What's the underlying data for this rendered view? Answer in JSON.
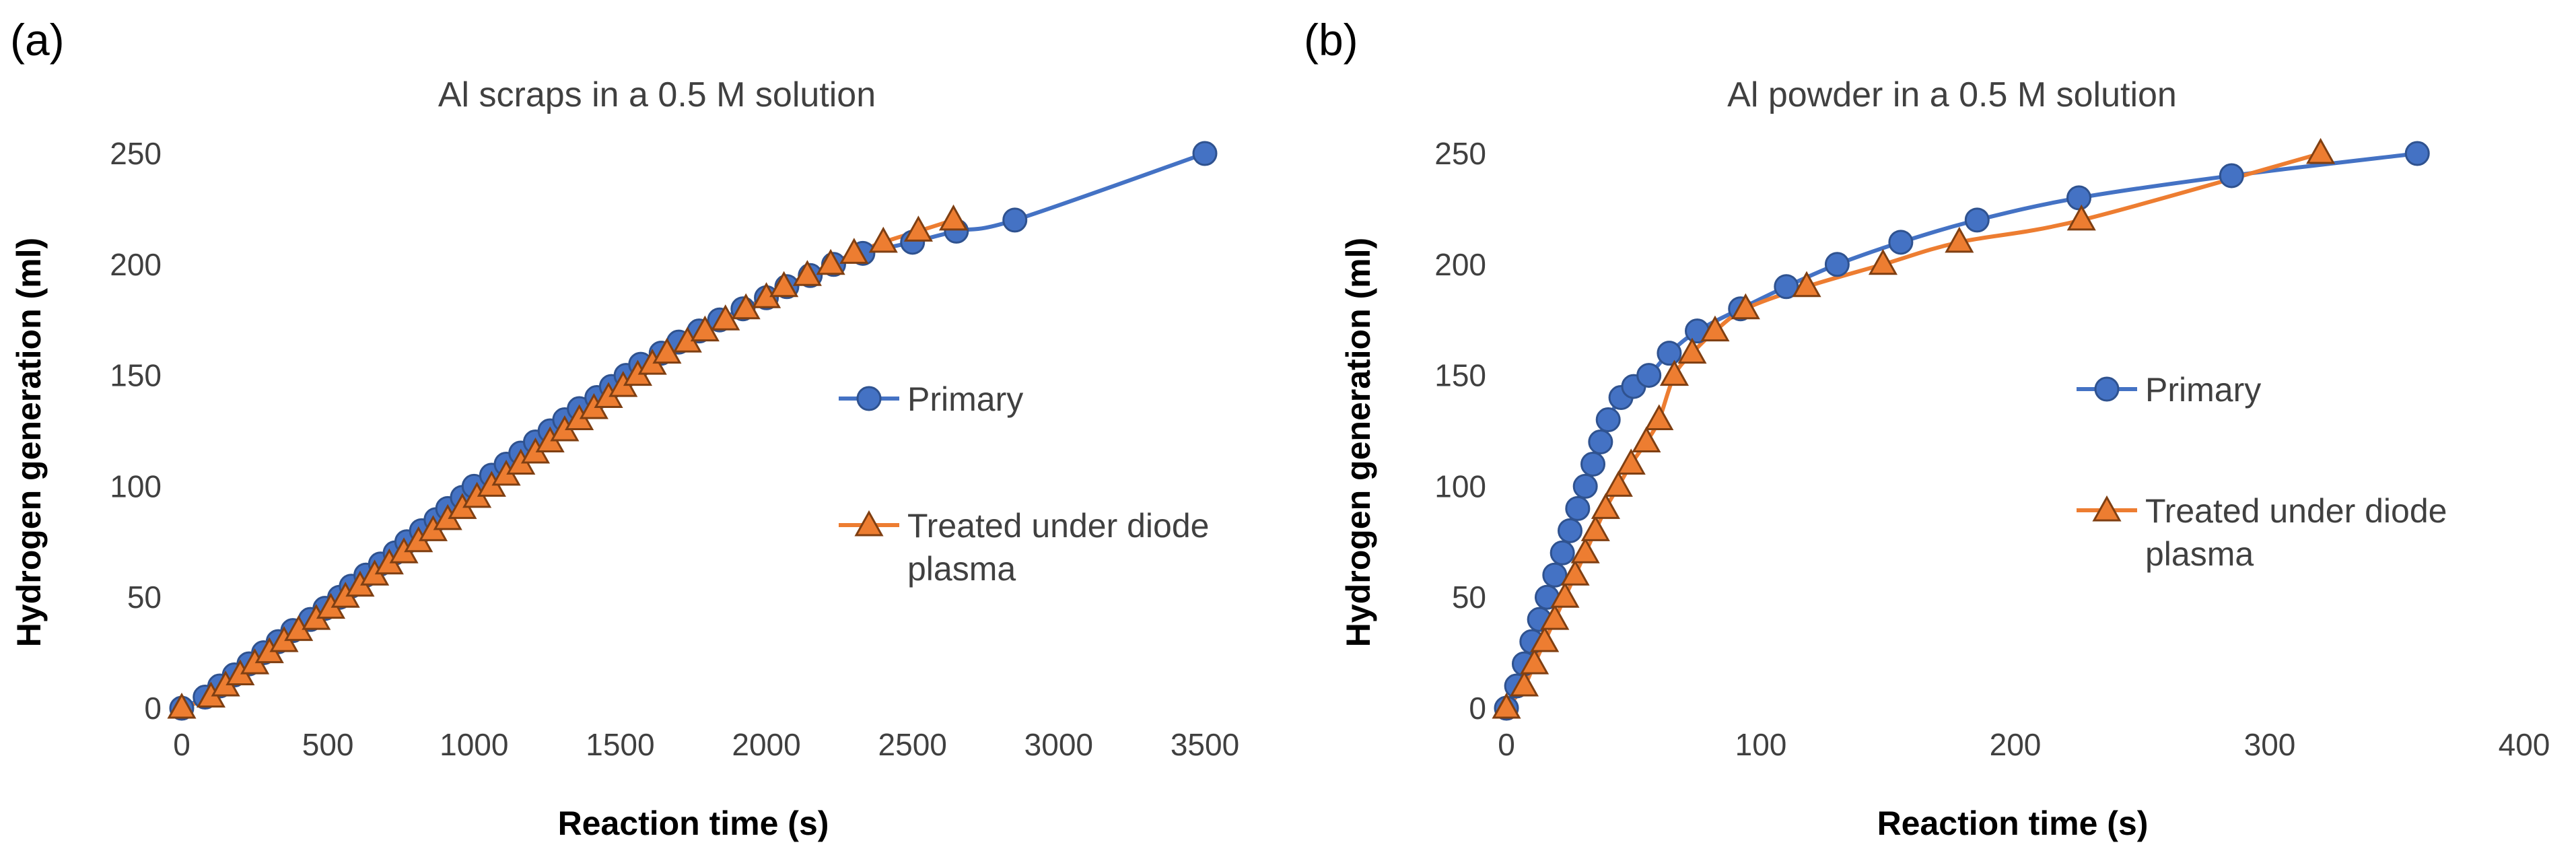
{
  "chart_data": [
    {
      "panel_label": "(a)",
      "type": "scatter",
      "title": "Al scraps in a 0.5 M solution",
      "xlabel": "Reaction time (s)",
      "ylabel": "Hydrogen generation (ml)",
      "xlim": [
        0,
        3500
      ],
      "ylim": [
        0,
        250
      ],
      "xticks": [
        0,
        500,
        1000,
        1500,
        2000,
        2500,
        3000,
        3500
      ],
      "yticks": [
        0,
        50,
        100,
        150,
        200,
        250
      ],
      "grid": false,
      "legend_position": "right",
      "series": [
        {
          "name": "Primary",
          "color": "#4472c4",
          "marker": "circle",
          "x": [
            0,
            80,
            130,
            180,
            230,
            280,
            330,
            380,
            440,
            490,
            540,
            580,
            630,
            680,
            730,
            770,
            820,
            870,
            910,
            960,
            1000,
            1060,
            1110,
            1160,
            1210,
            1260,
            1310,
            1360,
            1420,
            1470,
            1520,
            1570,
            1640,
            1700,
            1770,
            1840,
            1920,
            2000,
            2070,
            2150,
            2230,
            2330,
            2500,
            2650,
            2850,
            3500
          ],
          "y": [
            0,
            5,
            10,
            15,
            20,
            25,
            30,
            35,
            40,
            45,
            50,
            55,
            60,
            65,
            70,
            75,
            80,
            85,
            90,
            95,
            100,
            105,
            110,
            115,
            120,
            125,
            130,
            135,
            140,
            145,
            150,
            155,
            160,
            165,
            170,
            175,
            180,
            185,
            190,
            195,
            200,
            205,
            210,
            215,
            220,
            250
          ]
        },
        {
          "name": "Treated under diode plasma",
          "color": "#ed7d31",
          "marker": "triangle",
          "x": [
            0,
            100,
            150,
            200,
            250,
            300,
            350,
            400,
            460,
            510,
            560,
            610,
            660,
            710,
            760,
            810,
            860,
            910,
            960,
            1010,
            1060,
            1110,
            1160,
            1210,
            1260,
            1310,
            1360,
            1410,
            1460,
            1510,
            1560,
            1610,
            1660,
            1730,
            1790,
            1860,
            1930,
            2000,
            2060,
            2140,
            2220,
            2300,
            2400,
            2520,
            2640
          ],
          "y": [
            0,
            5,
            10,
            15,
            20,
            25,
            30,
            35,
            40,
            45,
            50,
            55,
            60,
            65,
            70,
            75,
            80,
            85,
            90,
            95,
            100,
            105,
            110,
            115,
            120,
            125,
            130,
            135,
            140,
            145,
            150,
            155,
            160,
            165,
            170,
            175,
            180,
            185,
            190,
            195,
            200,
            205,
            210,
            215,
            220
          ]
        }
      ]
    },
    {
      "panel_label": "(b)",
      "type": "scatter",
      "title": "Al powder in a 0.5 M solution",
      "xlabel": "Reaction time (s)",
      "ylabel": "Hydrogen generation (ml)",
      "xlim": [
        0,
        400
      ],
      "ylim": [
        0,
        250
      ],
      "xticks": [
        0,
        100,
        200,
        300,
        400
      ],
      "yticks": [
        0,
        50,
        100,
        150,
        200,
        250
      ],
      "grid": false,
      "legend_position": "right",
      "series": [
        {
          "name": "Primary",
          "color": "#4472c4",
          "marker": "circle",
          "x": [
            0,
            4,
            7,
            10,
            13,
            16,
            19,
            22,
            25,
            28,
            31,
            34,
            37,
            40,
            45,
            50,
            56,
            64,
            75,
            92,
            110,
            130,
            155,
            185,
            225,
            285,
            358
          ],
          "y": [
            0,
            10,
            20,
            30,
            40,
            50,
            60,
            70,
            80,
            90,
            100,
            110,
            120,
            130,
            140,
            145,
            150,
            160,
            170,
            180,
            190,
            200,
            210,
            220,
            230,
            240,
            250
          ]
        },
        {
          "name": "Treated under diode plasma",
          "color": "#ed7d31",
          "marker": "triangle",
          "x": [
            0,
            7,
            11,
            15,
            19,
            23,
            27,
            31,
            35,
            39,
            44,
            49,
            55,
            60,
            66,
            73,
            82,
            94,
            118,
            148,
            178,
            226,
            320
          ],
          "y": [
            0,
            10,
            20,
            30,
            40,
            50,
            60,
            70,
            80,
            90,
            100,
            110,
            120,
            130,
            150,
            160,
            170,
            180,
            190,
            200,
            210,
            220,
            250
          ]
        }
      ]
    }
  ]
}
